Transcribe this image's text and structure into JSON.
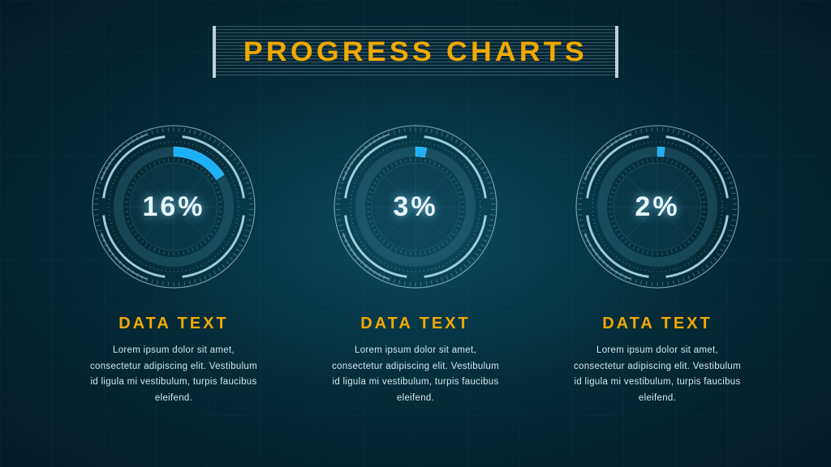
{
  "title": "PROGRESS CHARTS",
  "colors": {
    "accent": "#f2a900",
    "progress_fill": "#1fb6ff",
    "ring_stroke": "#b9e6f2",
    "ring_dim": "#3a788c",
    "text_light": "#e9f7ff",
    "body_text": "#cfe8f2",
    "bg_center": "#0a4a5f",
    "bg_edge": "#031a28"
  },
  "typography": {
    "title_fontsize": 34,
    "title_letter_spacing": 4,
    "pct_fontsize": 34,
    "label_fontsize": 20,
    "body_fontsize": 11.5
  },
  "gauge_style": {
    "type": "radial-progress",
    "outer_radius": 100,
    "progress_track_radius": 68,
    "progress_track_width": 12,
    "start_angle_deg": -90,
    "sweep_direction": "clockwise",
    "tick_count": 60,
    "segment_gap_deg": 8
  },
  "gauges": [
    {
      "percent": 16,
      "pct_text": "16%",
      "label": "DATA TEXT",
      "body": "Lorem ipsum dolor sit amet, consectetur adipiscing elit. Vestibulum id ligula mi vestibulum, turpis faucibus eleifend."
    },
    {
      "percent": 3,
      "pct_text": "3%",
      "label": "DATA TEXT",
      "body": "Lorem ipsum dolor sit amet, consectetur adipiscing elit. Vestibulum id ligula mi vestibulum, turpis faucibus eleifend."
    },
    {
      "percent": 2,
      "pct_text": "2%",
      "label": "DATA TEXT",
      "body": "Lorem ipsum dolor sit amet, consectetur adipiscing elit. Vestibulum id ligula mi vestibulum, turpis faucibus eleifend."
    }
  ]
}
